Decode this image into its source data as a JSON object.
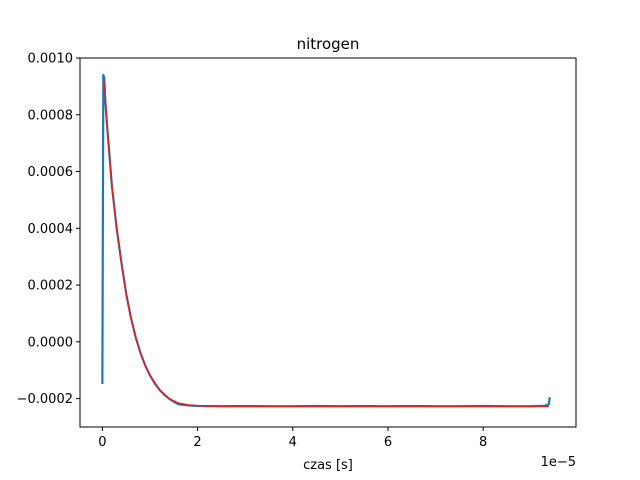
{
  "chart_data": {
    "type": "line",
    "title": "nitrogen",
    "xlabel": "czas [s]",
    "ylabel": "",
    "x_offset_label": "1e−5",
    "xlim": [
      -0.47,
      9.95
    ],
    "ylim": [
      -0.0003,
      0.001
    ],
    "xticks": [
      0,
      2,
      4,
      6,
      8
    ],
    "xtick_labels": [
      "0",
      "2",
      "4",
      "6",
      "8"
    ],
    "yticks": [
      -0.0002,
      0.0,
      0.0002,
      0.0004,
      0.0006,
      0.0008,
      0.001
    ],
    "ytick_labels": [
      "−0.0002",
      "0.0000",
      "0.0002",
      "0.0004",
      "0.0006",
      "0.0008",
      "0.0010"
    ],
    "grid": false,
    "series": [
      {
        "color": "#1f77b4",
        "x": [
          0.0,
          0.02,
          0.04,
          0.06,
          0.1,
          0.2,
          0.3,
          0.4,
          0.5,
          0.6,
          0.7,
          0.8,
          0.9,
          1.0,
          1.1,
          1.2,
          1.3,
          1.4,
          1.5,
          1.6,
          1.8,
          2.0,
          2.5,
          3.0,
          3.5,
          4.0,
          4.5,
          5.0,
          5.5,
          6.0,
          6.5,
          7.0,
          7.5,
          8.0,
          8.5,
          9.0,
          9.3,
          9.38,
          9.4
        ],
        "y": [
          -0.000148,
          0.00094,
          0.00093,
          0.00085,
          0.00076,
          0.00055,
          0.0004,
          0.00028,
          0.00017,
          8.48e-05,
          1.62e-05,
          -3.88e-05,
          -8.28e-05,
          -0.000118,
          -0.000146,
          -0.000169,
          -0.000186,
          -0.0002,
          -0.000211,
          -0.00022,
          -0.000224,
          -0.000226,
          -0.000227,
          -0.000226,
          -0.000227,
          -0.000227,
          -0.000226,
          -0.000227,
          -0.000226,
          -0.000227,
          -0.000226,
          -0.000227,
          -0.000227,
          -0.000226,
          -0.000227,
          -0.000227,
          -0.000225,
          -0.00022,
          -0.000195
        ]
      },
      {
        "color": "#d62728",
        "x": [
          0.04,
          0.1,
          0.2,
          0.3,
          0.4,
          0.5,
          0.6,
          0.7,
          0.8,
          0.9,
          1.0,
          1.2,
          1.4,
          1.6,
          1.8,
          2.0,
          2.5,
          3.0,
          4.0,
          5.0,
          6.0,
          7.0,
          8.0,
          9.0,
          9.38
        ],
        "y": [
          0.00092,
          0.00076,
          0.00055,
          0.0004,
          0.00028,
          0.00017,
          8.48e-05,
          1.62e-05,
          -3.88e-05,
          -8.28e-05,
          -0.000118,
          -0.000169,
          -0.0002,
          -0.000216,
          -0.000222,
          -0.000225,
          -0.000227,
          -0.000227,
          -0.000227,
          -0.000227,
          -0.000227,
          -0.000227,
          -0.000227,
          -0.000227,
          -0.000227
        ]
      }
    ]
  }
}
